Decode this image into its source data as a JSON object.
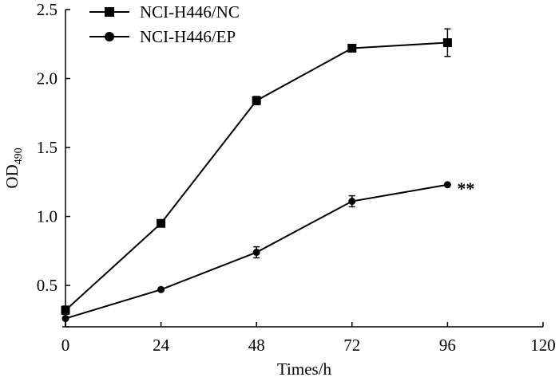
{
  "chart_data": {
    "type": "line",
    "title": "",
    "xlabel": "Times/h",
    "ylabel_main": "OD",
    "ylabel_sub": "490",
    "xlim": [
      0,
      120
    ],
    "ylim": [
      0.2,
      2.5
    ],
    "x_ticks": [
      0,
      24,
      48,
      72,
      96,
      120
    ],
    "x_tick_labels": [
      "0",
      "24",
      "48",
      "72",
      "96",
      "120"
    ],
    "y_ticks": [
      0.5,
      1.0,
      1.5,
      2.0,
      2.5
    ],
    "y_tick_labels": [
      "0.5",
      "1.0",
      "1.5",
      "2.0",
      "2.5"
    ],
    "grid": false,
    "legend_position": "top-left",
    "series": [
      {
        "name": "NCI-H446/NC",
        "marker": "square",
        "x": [
          0,
          24,
          48,
          72,
          96
        ],
        "y": [
          0.32,
          0.95,
          1.84,
          2.22,
          2.26
        ],
        "err": [
          0.03,
          0.0,
          0.03,
          0.01,
          0.1
        ]
      },
      {
        "name": "NCI-H446/EP",
        "marker": "circle",
        "x": [
          0,
          24,
          48,
          72,
          96
        ],
        "y": [
          0.26,
          0.47,
          0.74,
          1.11,
          1.23
        ],
        "err": [
          0.06,
          0.0,
          0.04,
          0.04,
          0.0
        ]
      }
    ],
    "annotations": [
      {
        "text": "**",
        "x": 96,
        "y": 1.23
      }
    ]
  }
}
